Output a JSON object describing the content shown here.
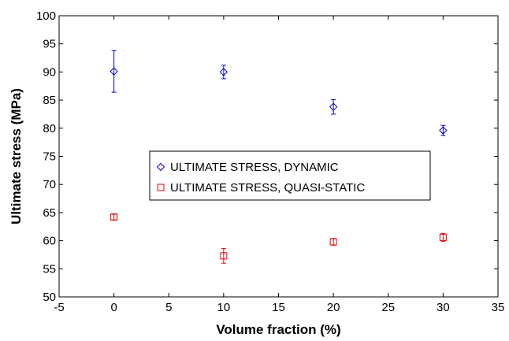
{
  "chart_data": {
    "type": "scatter",
    "title": "",
    "xlabel": "Volume fraction (%)",
    "ylabel": "Ultimate stress (MPa)",
    "xlim": [
      -5,
      35
    ],
    "ylim": [
      50,
      100
    ],
    "xticks": [
      -5,
      0,
      5,
      10,
      15,
      20,
      25,
      30,
      35
    ],
    "yticks": [
      50,
      55,
      60,
      65,
      70,
      75,
      80,
      85,
      90,
      95,
      100
    ],
    "grid": false,
    "legend_position": "center",
    "series": [
      {
        "name": "ULTIMATE STRESS, DYNAMIC",
        "marker": "diamond",
        "color": "#0000cc",
        "x": [
          0,
          10,
          20,
          30
        ],
        "y": [
          90.1,
          90.0,
          83.8,
          79.6
        ],
        "err": [
          3.7,
          1.2,
          1.3,
          0.9
        ]
      },
      {
        "name": "ULTIMATE STRESS, QUASI-STATIC",
        "marker": "square",
        "color": "#dd0000",
        "x": [
          0,
          10,
          20,
          30
        ],
        "y": [
          64.2,
          57.3,
          59.8,
          60.6
        ],
        "err": [
          0.5,
          1.3,
          0.6,
          0.7
        ]
      }
    ]
  }
}
